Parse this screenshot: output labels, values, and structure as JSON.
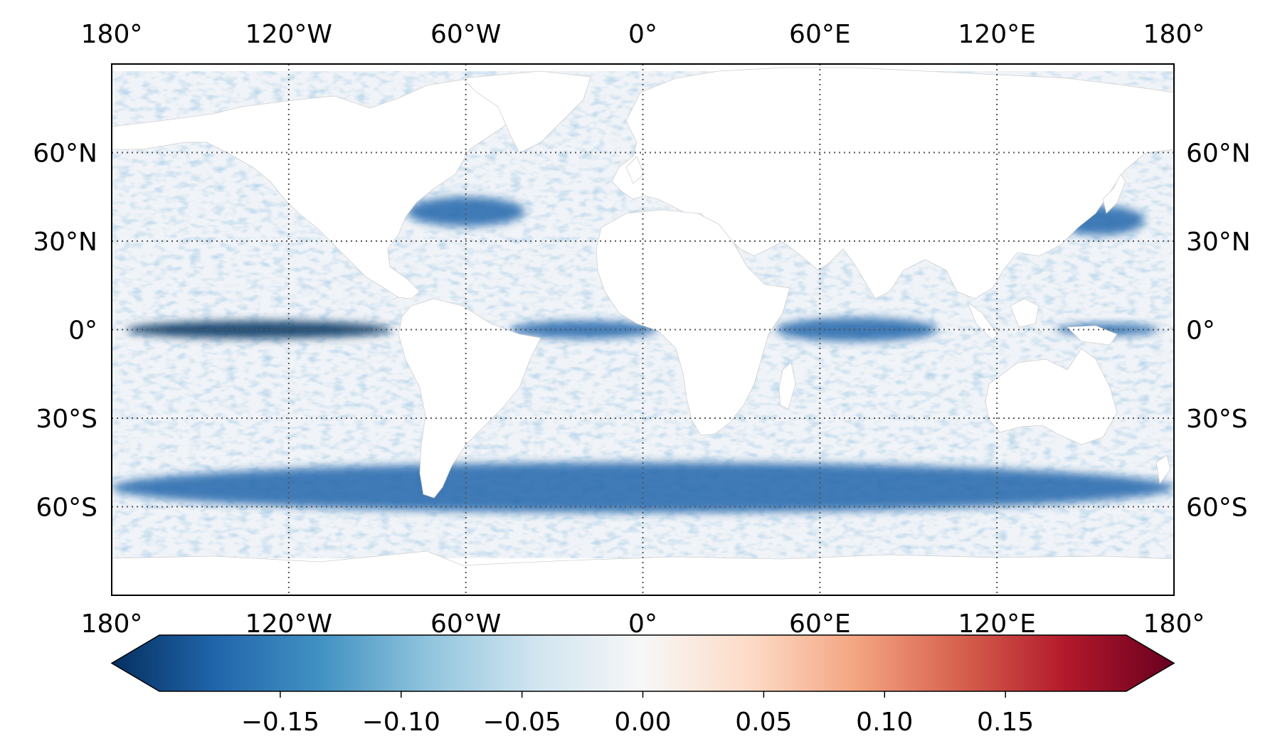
{
  "map": {
    "lon_ticks": [
      {
        "lon": -180,
        "label": "180°"
      },
      {
        "lon": -120,
        "label": "120°W"
      },
      {
        "lon": -60,
        "label": "60°W"
      },
      {
        "lon": 0,
        "label": "0°"
      },
      {
        "lon": 60,
        "label": "60°E"
      },
      {
        "lon": 120,
        "label": "120°E"
      },
      {
        "lon": 180,
        "label": "180°"
      }
    ],
    "lat_ticks": [
      {
        "lat": 60,
        "label": "60°N"
      },
      {
        "lat": 30,
        "label": "30°N"
      },
      {
        "lat": 0,
        "label": "0°"
      },
      {
        "lat": -30,
        "label": "30°S"
      },
      {
        "lat": -60,
        "label": "60°S"
      }
    ],
    "gridlines": true,
    "extent": {
      "lon": [
        -180,
        180
      ],
      "lat": [
        -90,
        90
      ]
    },
    "land_color": "#ffffff",
    "ocean_base_color": "#f0f3f7",
    "grid_color": "#555555"
  },
  "colorbar": {
    "colormap": "RdBu_r",
    "range": [
      -0.2,
      0.2
    ],
    "extend": "both",
    "ticks": [
      {
        "value": -0.15,
        "label": "−0.15"
      },
      {
        "value": -0.1,
        "label": "−0.10"
      },
      {
        "value": -0.05,
        "label": "−0.05"
      },
      {
        "value": 0.0,
        "label": "0.00"
      },
      {
        "value": 0.05,
        "label": "0.05"
      },
      {
        "value": 0.1,
        "label": "0.10"
      },
      {
        "value": 0.15,
        "label": "0.15"
      }
    ],
    "colors": [
      "#053061",
      "#2166ac",
      "#4393c3",
      "#92c5de",
      "#d1e5f0",
      "#f7f7f7",
      "#fddbc7",
      "#f4a582",
      "#d6604d",
      "#b2182b",
      "#67001f"
    ]
  },
  "features": [
    {
      "name": "equatorial-pacific-band",
      "lon": [
        -175,
        -85
      ],
      "lat": [
        -3,
        3
      ],
      "value": -0.2
    },
    {
      "name": "equatorial-atlantic-band",
      "lon": [
        -45,
        5
      ],
      "lat": [
        -3,
        3
      ],
      "value": -0.15
    },
    {
      "name": "equatorial-indian-band",
      "lon": [
        45,
        100
      ],
      "lat": [
        -4,
        4
      ],
      "value": -0.18
    },
    {
      "name": "western-pacific-band",
      "lon": [
        140,
        175
      ],
      "lat": [
        -2,
        2
      ],
      "value": -0.18
    },
    {
      "name": "southern-ocean-band",
      "lon": [
        -180,
        180
      ],
      "lat": [
        -62,
        -45
      ],
      "value": -0.18
    },
    {
      "name": "gulf-stream",
      "lon": [
        -80,
        -40
      ],
      "lat": [
        35,
        45
      ],
      "value": -0.17
    },
    {
      "name": "kuroshio",
      "lon": [
        140,
        170
      ],
      "lat": [
        32,
        42
      ],
      "value": -0.15
    }
  ]
}
